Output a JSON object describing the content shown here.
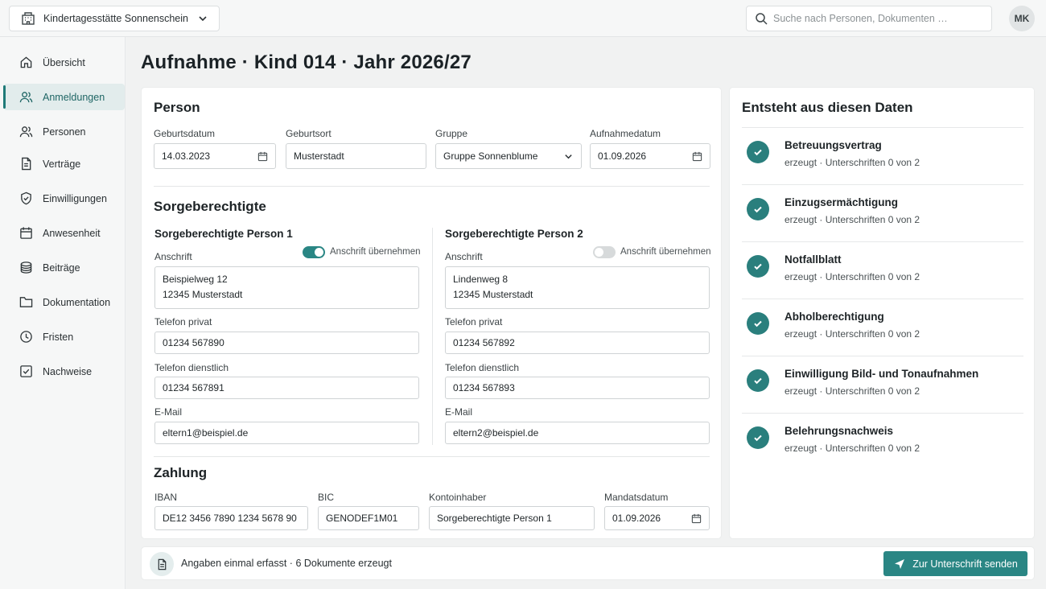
{
  "header": {
    "org_name": "Kindertagesstätte Sonnenschein",
    "search_placeholder": "Suche nach Personen, Dokumenten …",
    "avatar_initials": "MK"
  },
  "sidebar": {
    "items": [
      {
        "label": "Übersicht",
        "icon": "home-icon",
        "active": false
      },
      {
        "label": "Anmeldungen",
        "icon": "users-icon",
        "active": true
      },
      {
        "label": "Personen",
        "icon": "user-icon",
        "active": false
      },
      {
        "label": "Verträge",
        "icon": "document-icon",
        "active": false
      },
      {
        "label": "Einwilligungen",
        "icon": "shield-check-icon",
        "active": false
      },
      {
        "label": "Anwesenheit",
        "icon": "calendar-icon",
        "active": false
      },
      {
        "label": "Beiträge",
        "icon": "coins-icon",
        "active": false
      },
      {
        "label": "Dokumentation",
        "icon": "folder-icon",
        "active": false
      },
      {
        "label": "Fristen",
        "icon": "clock-icon",
        "active": false
      },
      {
        "label": "Nachweise",
        "icon": "checkbox-icon",
        "active": false
      }
    ]
  },
  "page": {
    "title": "Aufnahme · Kind 014 · Jahr 2026/27"
  },
  "person": {
    "section_title": "Person",
    "birthdate_label": "Geburtsdatum",
    "birthdate_value": "14.03.2023",
    "birthplace_label": "Geburtsort",
    "birthplace_value": "Musterstadt",
    "group_label": "Gruppe",
    "group_value": "Gruppe Sonnenblume",
    "admission_label": "Aufnahmedatum",
    "admission_value": "01.09.2026"
  },
  "guardians": {
    "section_title": "Sorgeberechtigte",
    "list": [
      {
        "title": "Sorgeberechtigte Person 1",
        "toggle_label": "Anschrift übernehmen",
        "toggle_on": true,
        "address_label": "Anschrift",
        "address_line1": "Beispielweg 12",
        "address_line2": "12345 Musterstadt",
        "phone_private_label": "Telefon privat",
        "phone_private": "01234 567890",
        "phone_work_label": "Telefon dienstlich",
        "phone_work": "01234 567891",
        "email_label": "E-Mail",
        "email": "eltern1@beispiel.de"
      },
      {
        "title": "Sorgeberechtigte Person 2",
        "toggle_label": "Anschrift übernehmen",
        "toggle_on": false,
        "address_label": "Anschrift",
        "address_line1": "Lindenweg 8",
        "address_line2": "12345 Musterstadt",
        "phone_private_label": "Telefon privat",
        "phone_private": "01234 567892",
        "phone_work_label": "Telefon dienstlich",
        "phone_work": "01234 567893",
        "email_label": "E-Mail",
        "email": "eltern2@beispiel.de"
      }
    ]
  },
  "payment": {
    "section_title": "Zahlung",
    "iban_label": "IBAN",
    "iban_value": "DE12 3456 7890 1234 5678 90",
    "bic_label": "BIC",
    "bic_value": "GENODEF1M01",
    "holder_label": "Kontoinhaber",
    "holder_value": "Sorgeberechtigte Person 1",
    "mandate_label": "Mandatsdatum",
    "mandate_value": "01.09.2026"
  },
  "documents": {
    "title": "Entsteht aus diesen Daten",
    "items": [
      {
        "name": "Betreuungsvertrag",
        "status": "erzeugt",
        "signatures": "Unterschriften 0 von 2"
      },
      {
        "name": "Einzugsermächtigung",
        "status": "erzeugt",
        "signatures": "Unterschriften 0 von 2"
      },
      {
        "name": "Notfallblatt",
        "status": "erzeugt",
        "signatures": "Unterschriften 0 von 2"
      },
      {
        "name": "Abholberechtigung",
        "status": "erzeugt",
        "signatures": "Unterschriften 0 von 2"
      },
      {
        "name": "Einwilligung Bild- und Tonaufnahmen",
        "status": "erzeugt",
        "signatures": "Unterschriften 0 von 2"
      },
      {
        "name": "Belehrungsnachweis",
        "status": "erzeugt",
        "signatures": "Unterschriften 0 von 2"
      }
    ]
  },
  "footer": {
    "summary": "Angaben einmal erfasst · 6 Dokumente erzeugt",
    "send_label": "Zur Unterschrift senden"
  },
  "colors": {
    "accent": "#2a8684",
    "accent_dark": "#1f7a78",
    "background": "#f1f2f2"
  }
}
